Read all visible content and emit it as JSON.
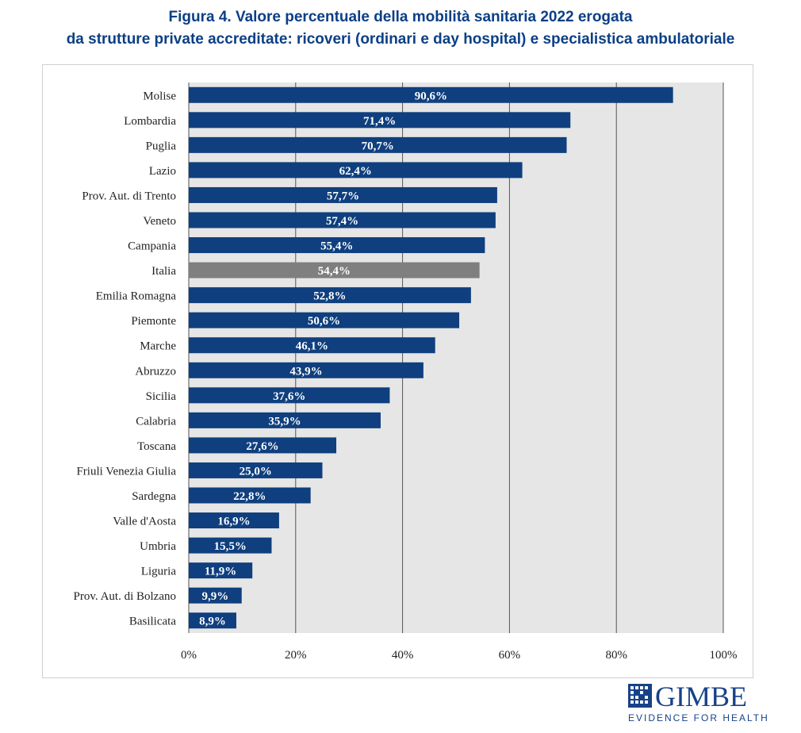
{
  "title_line1": "Figura 4. Valore percentuale della mobilità sanitaria 2022 erogata",
  "title_line2": "da strutture private accreditate: ricoveri (ordinari e day hospital) e specialistica ambulatoriale",
  "logo": {
    "name": "GIMBE",
    "tagline": "EVIDENCE FOR HEALTH"
  },
  "colors": {
    "bar": "#0f3f7e",
    "highlight_bar": "#7f7f7f",
    "plot_background": "#e6e6e6",
    "title": "#0b3f86"
  },
  "chart_data": {
    "type": "bar",
    "orientation": "horizontal",
    "title": "Figura 4. Valore percentuale della mobilità sanitaria 2022 erogata da strutture private accreditate: ricoveri (ordinari e day hospital) e specialistica ambulatoriale",
    "xlabel": "",
    "ylabel": "",
    "xlim": [
      0,
      100
    ],
    "x_ticks": [
      "0%",
      "20%",
      "40%",
      "60%",
      "80%",
      "100%"
    ],
    "grid": true,
    "highlight": "Italia",
    "categories": [
      "Molise",
      "Lombardia",
      "Puglia",
      "Lazio",
      "Prov. Aut. di Trento",
      "Veneto",
      "Campania",
      "Italia",
      "Emilia Romagna",
      "Piemonte",
      "Marche",
      "Abruzzo",
      "Sicilia",
      "Calabria",
      "Toscana",
      "Friuli Venezia Giulia",
      "Sardegna",
      "Valle d'Aosta",
      "Umbria",
      "Liguria",
      "Prov. Aut. di Bolzano",
      "Basilicata"
    ],
    "values": [
      90.6,
      71.4,
      70.7,
      62.4,
      57.7,
      57.4,
      55.4,
      54.4,
      52.8,
      50.6,
      46.1,
      43.9,
      37.6,
      35.9,
      27.6,
      25.0,
      22.8,
      16.9,
      15.5,
      11.9,
      9.9,
      8.9
    ],
    "labels": [
      "90,6%",
      "71,4%",
      "70,7%",
      "62,4%",
      "57,7%",
      "57,4%",
      "55,4%",
      "54,4%",
      "52,8%",
      "50,6%",
      "46,1%",
      "43,9%",
      "37,6%",
      "35,9%",
      "27,6%",
      "25,0%",
      "22,8%",
      "16,9%",
      "15,5%",
      "11,9%",
      "9,9%",
      "8,9%"
    ]
  }
}
